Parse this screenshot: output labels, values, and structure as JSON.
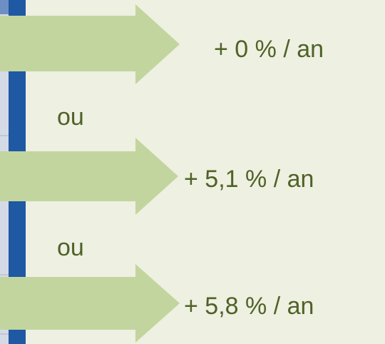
{
  "options": [
    "+ 0 % / an",
    "+ 5,1 % / an",
    "+ 5,8 % / an"
  ],
  "separators": [
    "ou",
    "ou"
  ]
}
